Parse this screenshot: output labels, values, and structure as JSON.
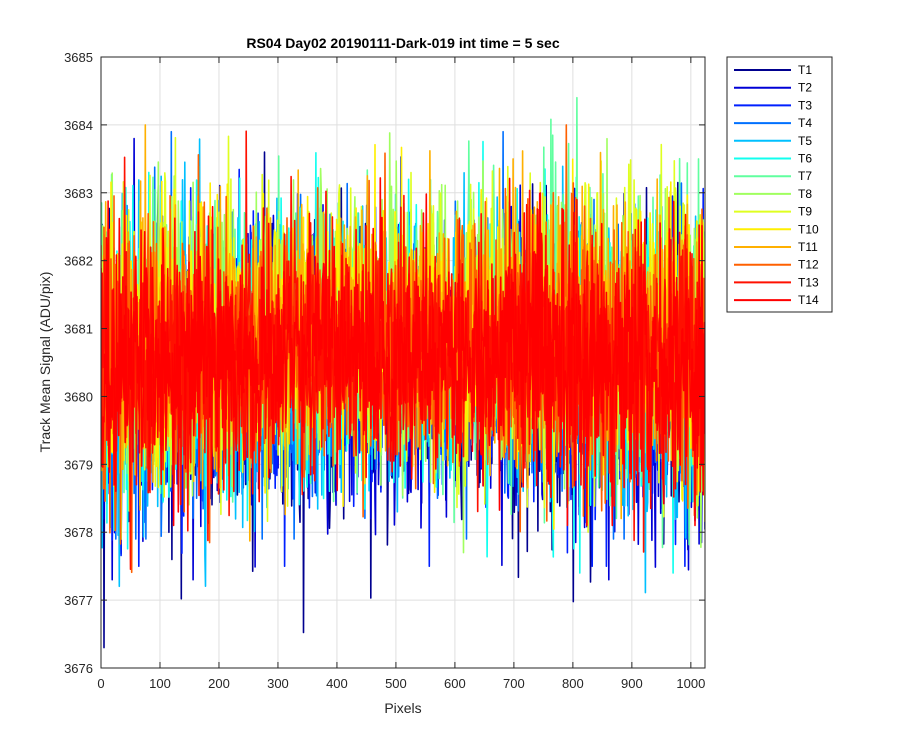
{
  "chart_data": {
    "type": "line",
    "title": "RS04 Day02 20190111-Dark-019 int time = 5 sec",
    "xlabel": "Pixels",
    "ylabel": "Track Mean Signal (ADU/pix)",
    "xlim": [
      0,
      1024
    ],
    "ylim": [
      3676,
      3685
    ],
    "xticks": [
      0,
      100,
      200,
      300,
      400,
      500,
      600,
      700,
      800,
      900,
      1000
    ],
    "yticks": [
      3676,
      3677,
      3678,
      3679,
      3680,
      3681,
      3682,
      3683,
      3684,
      3685
    ],
    "grid": true,
    "legend_position": "outside-top-right",
    "x_points": 1024,
    "series": [
      {
        "name": "T1",
        "color": "#00008f",
        "mean": 3680.3,
        "spread": 0.95,
        "min": 3676.3,
        "max": 3683.9
      },
      {
        "name": "T2",
        "color": "#0000d6",
        "mean": 3680.4,
        "spread": 0.95,
        "min": 3677.3,
        "max": 3683.8
      },
      {
        "name": "T3",
        "color": "#0020ff",
        "mean": 3680.5,
        "spread": 0.9,
        "min": 3677.5,
        "max": 3684.1
      },
      {
        "name": "T4",
        "color": "#0070ff",
        "mean": 3680.6,
        "spread": 0.9,
        "min": 3677.9,
        "max": 3683.9
      },
      {
        "name": "T5",
        "color": "#00c0ff",
        "mean": 3680.7,
        "spread": 0.9,
        "min": 3676.5,
        "max": 3683.9
      },
      {
        "name": "T6",
        "color": "#10ffef",
        "mean": 3680.8,
        "spread": 0.9,
        "min": 3677.4,
        "max": 3684.0
      },
      {
        "name": "T7",
        "color": "#60ff9f",
        "mean": 3680.9,
        "spread": 0.9,
        "min": 3677.6,
        "max": 3684.4
      },
      {
        "name": "T8",
        "color": "#a0ff5f",
        "mean": 3681.0,
        "spread": 0.9,
        "min": 3677.7,
        "max": 3684.6
      },
      {
        "name": "T9",
        "color": "#dfff20",
        "mean": 3681.0,
        "spread": 0.9,
        "min": 3677.8,
        "max": 3684.5
      },
      {
        "name": "T10",
        "color": "#ffef00",
        "mean": 3681.0,
        "spread": 0.85,
        "min": 3677.9,
        "max": 3684.5
      },
      {
        "name": "T11",
        "color": "#ffb000",
        "mean": 3680.9,
        "spread": 0.85,
        "min": 3676.8,
        "max": 3684.0
      },
      {
        "name": "T12",
        "color": "#ff6000",
        "mean": 3680.8,
        "spread": 0.85,
        "min": 3677.0,
        "max": 3684.0
      },
      {
        "name": "T13",
        "color": "#ff1000",
        "mean": 3680.7,
        "spread": 0.8,
        "min": 3677.0,
        "max": 3684.3
      },
      {
        "name": "T14",
        "color": "#ff0000",
        "mean": 3680.7,
        "spread": 0.8,
        "min": 3678.1,
        "max": 3684.3
      }
    ]
  }
}
